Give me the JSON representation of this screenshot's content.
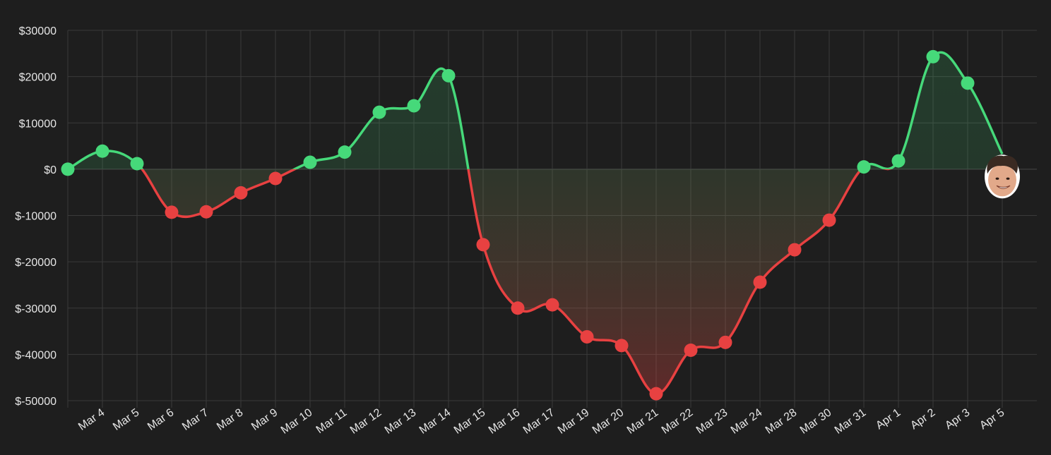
{
  "chart_data": {
    "type": "line",
    "categories": [
      "",
      "Mar 4",
      "Mar 5",
      "Mar 6",
      "Mar 7",
      "Mar 8",
      "Mar 9",
      "Mar 10",
      "Mar 11",
      "Mar 12",
      "Mar 13",
      "Mar 14",
      "Mar 15",
      "Mar 16",
      "Mar 17",
      "Mar 19",
      "Mar 20",
      "Mar 21",
      "Mar 22",
      "Mar 23",
      "Mar 24",
      "Mar 28",
      "Mar 30",
      "Mar 31",
      "Apr 1",
      "Apr 2",
      "Apr 3",
      "Apr 5"
    ],
    "values": [
      0,
      3900,
      1200,
      -9300,
      -9200,
      -5100,
      -2000,
      1500,
      3700,
      12300,
      13700,
      20200,
      -16300,
      -30000,
      -29300,
      -36200,
      -38100,
      -48500,
      -39100,
      -37400,
      -24400,
      -17400,
      -11000,
      500,
      1800,
      24300,
      18600,
      3300
    ],
    "ylim": [
      -50000,
      30000
    ],
    "yticks": [
      "$30000",
      "$20000",
      "$10000",
      "$0",
      "$-10000",
      "$-20000",
      "$-30000",
      "$-40000",
      "$-50000"
    ],
    "ytick_values": [
      30000,
      20000,
      10000,
      0,
      -10000,
      -20000,
      -30000,
      -40000,
      -50000
    ],
    "grid": true,
    "colors": {
      "positive": "#46d97a",
      "negative": "#e84141",
      "background": "#1e1e1e",
      "grid": "#3a3a3a"
    },
    "last_point_marker": "face-avatar-icon"
  }
}
